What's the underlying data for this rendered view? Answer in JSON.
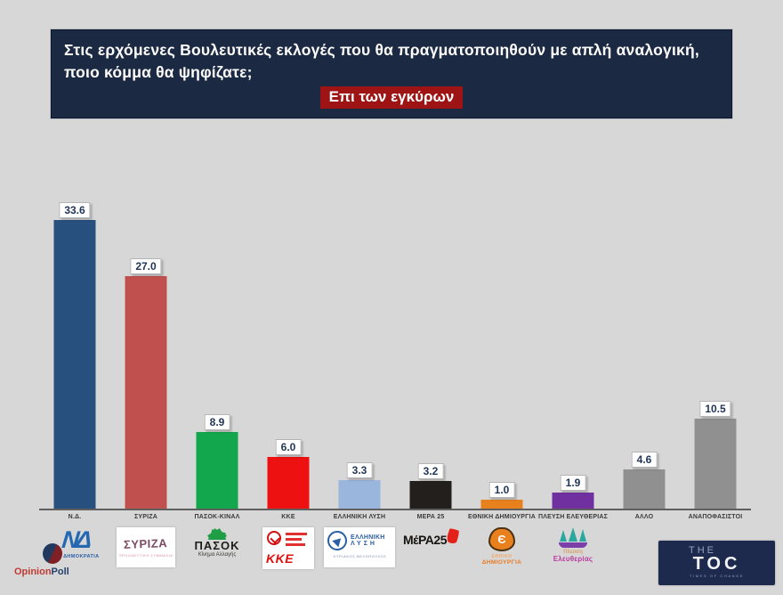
{
  "header": {
    "question_line1": "Στις ερχόμενες Βουλευτικές εκλογές που θα πραγματοποιηθούν με απλή αναλογική,",
    "question_line2": "ποιο κόμμα θα ψηφίζατε;",
    "highlight": "Επι των εγκύρων"
  },
  "chart_data": {
    "type": "bar",
    "title": "Στις ερχόμενες Βουλευτικές εκλογές που θα πραγματοποιηθούν με απλή αναλογική, ποιο κόμμα θα ψηφίζατε; (Επι των εγκύρων)",
    "categories": [
      "Ν.Δ.",
      "ΣΥΡΙΖΑ",
      "ΠΑΣΟΚ-ΚΙΝΑΛ",
      "ΚΚΕ",
      "ΕΛΛΗΝΙΚΗ ΛΥΣΗ",
      "ΜΕΡΑ 25",
      "ΕΘΝΙΚΗ ΔΗΜΙΟΥΡΓΙΑ",
      "ΠΛΕΥΣΗ ΕΛΕΥΘΕΡΙΑΣ",
      "ΑΛΛΟ",
      "ΑΝΑΠΟΦΑΣΙΣΤΟΙ"
    ],
    "values": [
      33.6,
      27.0,
      8.9,
      6.0,
      3.3,
      3.2,
      1.0,
      1.9,
      4.6,
      10.5
    ],
    "colors": [
      "#27507f",
      "#c0504d",
      "#12a74c",
      "#ee1111",
      "#9ab6dc",
      "#231f1c",
      "#e8801e",
      "#7030a0",
      "#909090",
      "#909090"
    ],
    "xlabel": "",
    "ylabel": "",
    "ylim": [
      0,
      36
    ],
    "grid": false,
    "legend": false,
    "value_labels": true
  },
  "logos": {
    "nd": {
      "monogram": "ΝΔ",
      "name": "ΝΕΑ ΔΗΜΟΚΡΑΤΙΑ"
    },
    "syriza": {
      "name": "ΣΥΡΙΖΑ",
      "sub": "ΠΡΟΟΔΕΥΤΙΚΗ ΣΥΜΜΑΧΙΑ"
    },
    "pasok": {
      "name": "ΠΑΣΟΚ",
      "sub": "Κίνημα Αλλαγής"
    },
    "kke": {
      "name": "ΚΚΕ"
    },
    "elliniki_lysi": {
      "line1": "ΕΛΛΗΝΙΚΗ",
      "line2": "ΛΥΣΗ",
      "sub": "ΚΥΡΙΑΚΟΣ ΒΕΛΟΠΟΥΛΟΣ"
    },
    "mera25": {
      "name": "ΜέΡΑ25"
    },
    "ethniki_dimiourgia": {
      "symbol": "Є",
      "line1": "ΕΘΝΙΚΗ",
      "line2": "ΔΗΜΙΟΥΡΓΙΑ"
    },
    "plefsi": {
      "line1": "Πλεύση",
      "line2": "Ελευθερίας"
    }
  },
  "footer": {
    "opinionpoll": {
      "brand_part1": "Opinion",
      "brand_part2": "Poll"
    },
    "thetoc": {
      "the": "THE",
      "toc": "TOC",
      "tagline": "TIMES OF CHANGE"
    }
  }
}
